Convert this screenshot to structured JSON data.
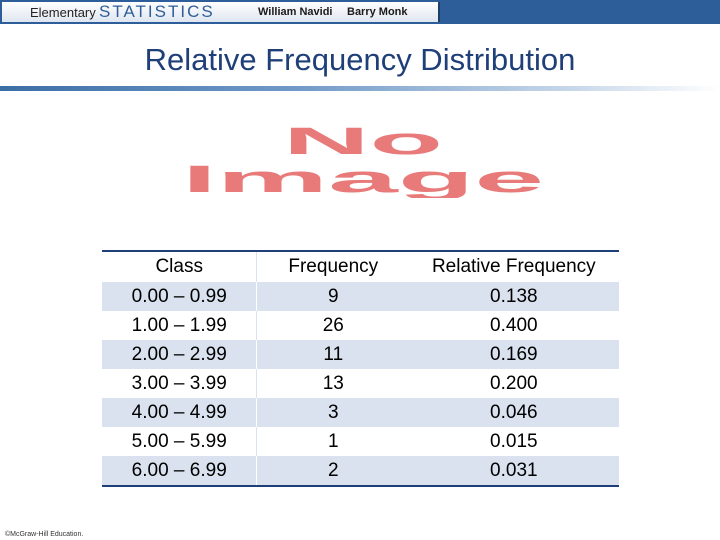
{
  "header": {
    "brand_prefix": "Elementary",
    "brand_main": "STATISTICS",
    "authors": [
      "William Navidi",
      "Barry Monk"
    ],
    "colors": {
      "banner": "#2e5e9a",
      "title": "#1f3f78",
      "row_shade": "#d9e2ee"
    }
  },
  "title": "Relative Frequency Distribution",
  "placeholder_image": {
    "text_line1": "No",
    "text_line2": "Image",
    "color": "#e87a7a"
  },
  "table": {
    "columns": [
      "Class",
      "Frequency",
      "Relative Frequency"
    ],
    "rows": [
      {
        "class": "0.00 – 0.99",
        "frequency": "9",
        "relative": "0.138"
      },
      {
        "class": "1.00 – 1.99",
        "frequency": "26",
        "relative": "0.400"
      },
      {
        "class": "2.00 – 2.99",
        "frequency": "11",
        "relative": "0.169"
      },
      {
        "class": "3.00 – 3.99",
        "frequency": "13",
        "relative": "0.200"
      },
      {
        "class": "4.00 – 4.99",
        "frequency": "3",
        "relative": "0.046"
      },
      {
        "class": "5.00 – 5.99",
        "frequency": "1",
        "relative": "0.015"
      },
      {
        "class": "6.00 – 6.99",
        "frequency": "2",
        "relative": "0.031"
      }
    ]
  },
  "footer": {
    "copyright": "©McGraw-Hill Education."
  }
}
